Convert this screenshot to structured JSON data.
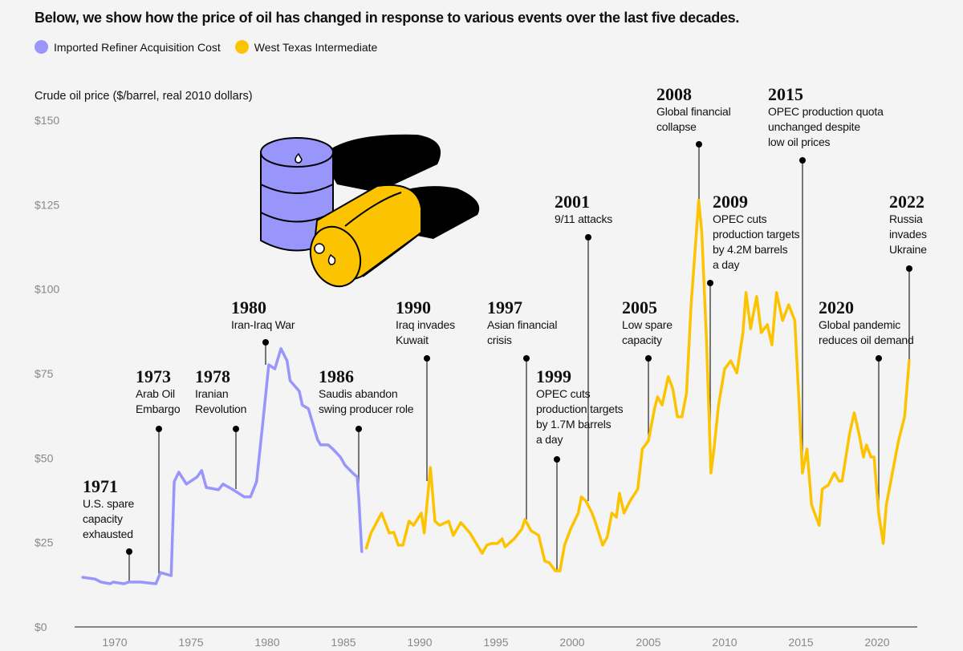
{
  "title": "Below, we show how the price of oil has changed in response to various events over the last five decades.",
  "legend": [
    {
      "label": "Imported Refiner Acquisition Cost",
      "color": "#9896fb"
    },
    {
      "label": "West Texas Intermediate",
      "color": "#fcc400"
    }
  ],
  "chart_data": {
    "type": "line",
    "title": "Below, we show how the price of oil has changed in response to various events over the last five decades.",
    "ylabel": "Crude oil price ($/barrel, real 2010 dollars)",
    "xlabel": "",
    "ylim": [
      0,
      150
    ],
    "xlim": [
      1968,
      2023
    ],
    "y_ticks": [
      "$0",
      "$25",
      "$50",
      "$75",
      "$100",
      "$125",
      "$150"
    ],
    "x_ticks": [
      "1970",
      "1975",
      "1980",
      "1985",
      "1990",
      "1995",
      "2000",
      "2005",
      "2010",
      "2015",
      "2020"
    ],
    "grid": false,
    "legend_position": "top-left",
    "series": [
      {
        "name": "Imported Refiner Acquisition Cost",
        "color": "#9896fb",
        "x": [
          1967.9,
          1968.7,
          1969.1,
          1969.7,
          1969.9,
          1970.6,
          1970.9,
          1971.7,
          1972.7,
          1973.0,
          1973.7,
          1973.9,
          1974.2,
          1974.7,
          1975.4,
          1975.7,
          1976.0,
          1976.8,
          1977.1,
          1977.7,
          1978.5,
          1978.9,
          1979.3,
          1979.7,
          1980.1,
          1980.5,
          1980.9,
          1981.3,
          1981.5,
          1982.1,
          1982.3,
          1982.7,
          1983.3,
          1983.5,
          1984.0,
          1984.3,
          1984.8,
          1985.1,
          1985.6,
          1985.9,
          1986.0,
          1986.2
        ],
        "y": [
          14.7,
          14.2,
          13.3,
          12.8,
          13.3,
          12.8,
          13.3,
          13.3,
          12.8,
          16.1,
          15.2,
          43,
          45.8,
          42.3,
          44.4,
          46.3,
          41.3,
          40.6,
          42.3,
          40.8,
          38.5,
          38.5,
          43,
          60,
          77.6,
          76.4,
          82.4,
          78.8,
          72.9,
          69.8,
          65.7,
          64.6,
          55.5,
          53.9,
          53.9,
          52.7,
          50.3,
          47.9,
          45.6,
          44.4,
          38.5,
          22.3
        ]
      },
      {
        "name": "West Texas Intermediate",
        "color": "#fcc400",
        "x": [
          1986.5,
          1986.8,
          1987.5,
          1988.0,
          1988.3,
          1988.6,
          1988.9,
          1989.3,
          1989.6,
          1990.1,
          1990.3,
          1990.7,
          1991.0,
          1991.3,
          1991.9,
          1992.2,
          1992.7,
          1993.3,
          1994.1,
          1994.4,
          1994.7,
          1995.1,
          1995.4,
          1995.6,
          1996.2,
          1996.7,
          1996.9,
          1997.3,
          1997.8,
          1998.2,
          1998.5,
          1998.9,
          1999.2,
          1999.5,
          1999.9,
          2000.4,
          2000.6,
          2000.9,
          2001.3,
          2001.5,
          2002.0,
          2002.3,
          2002.6,
          2002.9,
          2003.1,
          2003.4,
          2003.8,
          2004.3,
          2004.6,
          2005.0,
          2005.4,
          2005.6,
          2005.9,
          2006.3,
          2006.6,
          2006.9,
          2007.2,
          2007.5,
          2007.8,
          2008.3,
          2008.5,
          2008.8,
          2009.1,
          2009.3,
          2009.6,
          2010.0,
          2010.4,
          2010.8,
          2011.2,
          2011.4,
          2011.7,
          2012.1,
          2012.4,
          2012.8,
          2013.1,
          2013.4,
          2013.8,
          2014.2,
          2014.6,
          2014.9,
          2015.1,
          2015.4,
          2015.7,
          2016.2,
          2016.4,
          2016.8,
          2017.2,
          2017.5,
          2017.7,
          2018.2,
          2018.5,
          2018.8,
          2019.1,
          2019.3,
          2019.6,
          2019.8,
          2020.1,
          2020.4,
          2020.6,
          2021.0,
          2021.4,
          2021.8,
          2022.1
        ],
        "y": [
          23.3,
          27.8,
          33.7,
          27.8,
          28,
          24.2,
          24.2,
          31.3,
          30.1,
          33.7,
          27.8,
          47.2,
          31.3,
          30.1,
          31.3,
          27.1,
          30.9,
          27.8,
          21.8,
          24.2,
          24.7,
          24.7,
          26.1,
          23.7,
          26.1,
          29,
          31.8,
          28.5,
          27.1,
          19.5,
          19,
          16.6,
          16.6,
          24.2,
          29,
          33.7,
          38.5,
          37.3,
          33.7,
          31.3,
          24.2,
          26.6,
          33.7,
          32.5,
          39.6,
          33.7,
          37.3,
          40.8,
          52.7,
          55.1,
          64.6,
          68.1,
          65.7,
          74.1,
          70.5,
          62.2,
          62.2,
          69.3,
          95.4,
          126.3,
          116.8,
          85.9,
          45.6,
          52.7,
          65.7,
          76.4,
          78.8,
          75.2,
          87.1,
          99,
          88.3,
          97.8,
          87.1,
          89.5,
          83.5,
          99,
          90.7,
          95.4,
          90.7,
          64.6,
          45.6,
          52.7,
          36.1,
          30.1,
          40.8,
          42,
          45.6,
          43.2,
          43.2,
          57.4,
          63.4,
          57.4,
          50.3,
          53.9,
          50.3,
          50.3,
          33.7,
          24.7,
          36.1,
          45.6,
          55.1,
          62.2,
          78.8
        ]
      }
    ],
    "annotations": [
      {
        "year": "1971",
        "text": "U.S. spare\ncapacity\nexhausted"
      },
      {
        "year": "1973",
        "text": "Arab Oil\nEmbargo"
      },
      {
        "year": "1978",
        "text": "Iranian\nRevolution"
      },
      {
        "year": "1980",
        "text": "Iran-Iraq War"
      },
      {
        "year": "1986",
        "text": "Saudis abandon\nswing producer role"
      },
      {
        "year": "1990",
        "text": "Iraq invades\nKuwait"
      },
      {
        "year": "1997",
        "text": "Asian financial\ncrisis"
      },
      {
        "year": "1999",
        "text": "OPEC cuts\nproduction targets\nby 1.7M barrels\na day"
      },
      {
        "year": "2001",
        "text": "9/11 attacks"
      },
      {
        "year": "2005",
        "text": "Low spare\ncapacity"
      },
      {
        "year": "2008",
        "text": "Global financial\ncollapse"
      },
      {
        "year": "2009",
        "text": "OPEC cuts\nproduction targets\nby 4.2M barrels\na day"
      },
      {
        "year": "2015",
        "text": "OPEC production quota\nunchanged despite\nlow oil prices"
      },
      {
        "year": "2020",
        "text": "Global pandemic\nreduces oil demand"
      },
      {
        "year": "2022",
        "text": "Russia\ninvades\nUkraine"
      }
    ]
  }
}
